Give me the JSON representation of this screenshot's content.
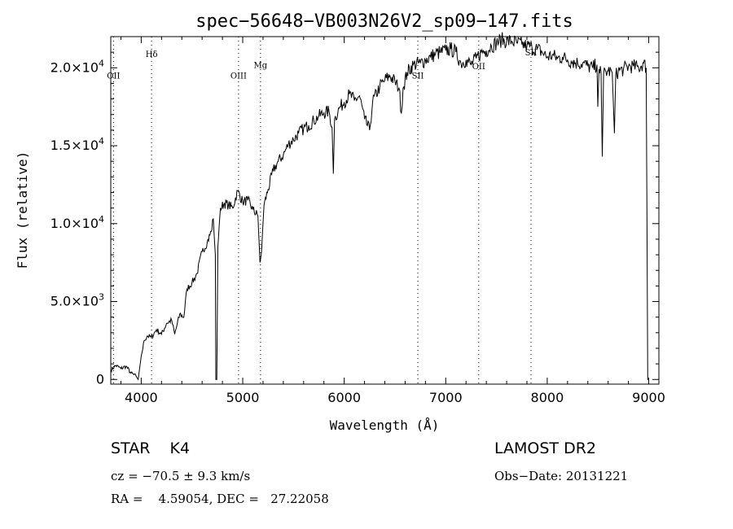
{
  "chart_data": {
    "type": "line",
    "title": "spec−56648−VB003N26V2_sp09−147.fits",
    "xlabel": "Wavelength (Å)",
    "ylabel": "Flux (relative)",
    "xlim": [
      3700,
      9100
    ],
    "ylim": [
      -300,
      22000
    ],
    "xticks": [
      {
        "value": 4000,
        "label": "4000"
      },
      {
        "value": 5000,
        "label": "5000"
      },
      {
        "value": 6000,
        "label": "6000"
      },
      {
        "value": 7000,
        "label": "7000"
      },
      {
        "value": 8000,
        "label": "8000"
      },
      {
        "value": 9000,
        "label": "9000"
      }
    ],
    "yticks": [
      {
        "value": 0,
        "mant": "0",
        "exp": ""
      },
      {
        "value": 5000,
        "mant": "5.0×10",
        "exp": "3"
      },
      {
        "value": 10000,
        "mant": "1.0×10",
        "exp": "4"
      },
      {
        "value": 15000,
        "mant": "1.5×10",
        "exp": "4"
      },
      {
        "value": 20000,
        "mant": "2.0×10",
        "exp": "4"
      }
    ],
    "lines": [
      {
        "label": "OII",
        "x": 3727,
        "label_y": 19300
      },
      {
        "label": "Hδ",
        "x": 4102,
        "label_y": 20700
      },
      {
        "label": "OIII",
        "x": 4959,
        "label_y": 19300
      },
      {
        "label": "Mg",
        "x": 5175,
        "label_y": 20000
      },
      {
        "label": "SII",
        "x": 6725,
        "label_y": 19300
      },
      {
        "label": "OII",
        "x": 7325,
        "label_y": 19900
      },
      {
        "label": "SII",
        "x": 7840,
        "label_y": 20800
      }
    ],
    "series": [
      {
        "points": [
          [
            3700,
            600
          ],
          [
            3750,
            900
          ],
          [
            3800,
            700
          ],
          [
            3850,
            850
          ],
          [
            3900,
            400
          ],
          [
            3950,
            200
          ],
          [
            3970,
            0
          ],
          [
            4000,
            1500
          ],
          [
            4030,
            2500
          ],
          [
            4060,
            2800
          ],
          [
            4100,
            2700
          ],
          [
            4150,
            3200
          ],
          [
            4200,
            2900
          ],
          [
            4250,
            3600
          ],
          [
            4300,
            3800
          ],
          [
            4330,
            2900
          ],
          [
            4380,
            4200
          ],
          [
            4420,
            4000
          ],
          [
            4450,
            5800
          ],
          [
            4500,
            6200
          ],
          [
            4550,
            6800
          ],
          [
            4600,
            8200
          ],
          [
            4650,
            8800
          ],
          [
            4690,
            9500
          ],
          [
            4710,
            10300
          ],
          [
            4730,
            8000
          ],
          [
            4735,
            0
          ],
          [
            4745,
            0
          ],
          [
            4755,
            8500
          ],
          [
            4780,
            11000
          ],
          [
            4820,
            11300
          ],
          [
            4860,
            11200
          ],
          [
            4900,
            11000
          ],
          [
            4950,
            12100
          ],
          [
            5000,
            11400
          ],
          [
            5050,
            11500
          ],
          [
            5100,
            10900
          ],
          [
            5150,
            10500
          ],
          [
            5170,
            7500
          ],
          [
            5185,
            8200
          ],
          [
            5210,
            11200
          ],
          [
            5250,
            12200
          ],
          [
            5300,
            13400
          ],
          [
            5350,
            14000
          ],
          [
            5400,
            14400
          ],
          [
            5450,
            15100
          ],
          [
            5500,
            15400
          ],
          [
            5550,
            15800
          ],
          [
            5600,
            16100
          ],
          [
            5650,
            16300
          ],
          [
            5700,
            16600
          ],
          [
            5750,
            16900
          ],
          [
            5800,
            17100
          ],
          [
            5850,
            17200
          ],
          [
            5880,
            16200
          ],
          [
            5893,
            13200
          ],
          [
            5905,
            16700
          ],
          [
            5950,
            17400
          ],
          [
            6000,
            17800
          ],
          [
            6050,
            18300
          ],
          [
            6100,
            17900
          ],
          [
            6150,
            18200
          ],
          [
            6200,
            16700
          ],
          [
            6250,
            16000
          ],
          [
            6280,
            17800
          ],
          [
            6350,
            18800
          ],
          [
            6400,
            19200
          ],
          [
            6450,
            19500
          ],
          [
            6500,
            19100
          ],
          [
            6540,
            18700
          ],
          [
            6563,
            17100
          ],
          [
            6580,
            18700
          ],
          [
            6620,
            19700
          ],
          [
            6680,
            20200
          ],
          [
            6750,
            20300
          ],
          [
            6800,
            20500
          ],
          [
            6850,
            20700
          ],
          [
            6900,
            20900
          ],
          [
            6950,
            21000
          ],
          [
            7000,
            21100
          ],
          [
            7050,
            21200
          ],
          [
            7100,
            21000
          ],
          [
            7150,
            20300
          ],
          [
            7200,
            20500
          ],
          [
            7250,
            20200
          ],
          [
            7300,
            20600
          ],
          [
            7350,
            21000
          ],
          [
            7400,
            21100
          ],
          [
            7450,
            21400
          ],
          [
            7500,
            21600
          ],
          [
            7550,
            21800
          ],
          [
            7600,
            21700
          ],
          [
            7650,
            21700
          ],
          [
            7700,
            21600
          ],
          [
            7750,
            21500
          ],
          [
            7800,
            21400
          ],
          [
            7850,
            21300
          ],
          [
            7900,
            21200
          ],
          [
            7950,
            21000
          ],
          [
            8000,
            20700
          ],
          [
            8050,
            20800
          ],
          [
            8100,
            20600
          ],
          [
            8150,
            20700
          ],
          [
            8200,
            20500
          ],
          [
            8250,
            20400
          ],
          [
            8300,
            20300
          ],
          [
            8350,
            20300
          ],
          [
            8400,
            20100
          ],
          [
            8450,
            20000
          ],
          [
            8490,
            20200
          ],
          [
            8498,
            17500
          ],
          [
            8510,
            19900
          ],
          [
            8530,
            19700
          ],
          [
            8542,
            14300
          ],
          [
            8555,
            19600
          ],
          [
            8600,
            19800
          ],
          [
            8640,
            19700
          ],
          [
            8662,
            15800
          ],
          [
            8675,
            19500
          ],
          [
            8700,
            19800
          ],
          [
            8750,
            19900
          ],
          [
            8800,
            20100
          ],
          [
            8850,
            20100
          ],
          [
            8900,
            20000
          ],
          [
            8950,
            20300
          ],
          [
            8975,
            20000
          ],
          [
            8990,
            0
          ],
          [
            9000,
            0
          ]
        ]
      }
    ]
  },
  "info": {
    "star": "STAR    K4",
    "cz": "cz = −70.5 ± 9.3 km/s",
    "radec": "RA =    4.59054, DEC =   27.22058",
    "survey": "LAMOST DR2",
    "obsdate": "Obs−Date: 20131221"
  }
}
